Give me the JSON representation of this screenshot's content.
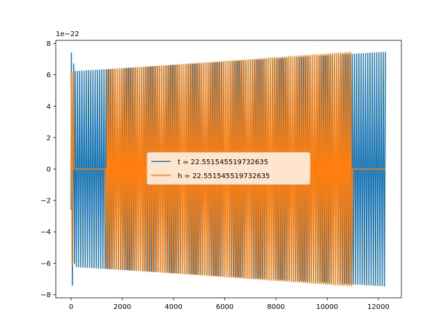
{
  "chart_data": {
    "type": "line",
    "title": "",
    "xlabel": "",
    "ylabel": "",
    "offset_text": "1e−22",
    "xlim": [
      -600,
      12900
    ],
    "ylim": [
      -8.2,
      8.2
    ],
    "xticks": [
      0,
      2000,
      4000,
      6000,
      8000,
      10000,
      12000
    ],
    "xtick_labels": [
      "0",
      "2000",
      "4000",
      "6000",
      "8000",
      "10000",
      "12000"
    ],
    "yticks": [
      -8,
      -6,
      -4,
      -2,
      0,
      2,
      4,
      6,
      8
    ],
    "ytick_labels": [
      "−8",
      "−6",
      "−4",
      "−2",
      "0",
      "2",
      "4",
      "6",
      "8"
    ],
    "grid": false,
    "legend_position": "center",
    "series": [
      {
        "name": "t = 22.551545519732635",
        "color": "#1f77b4",
        "description_points": {
          "x_start": 0,
          "x_end": 12280,
          "amplitude_start": 6.2,
          "amplitude_end": 7.45,
          "initial_spike": 7.4,
          "initial_dip": -7.4
        }
      },
      {
        "name": "h = 22.551545519732635",
        "color": "#ff7f0e",
        "description_points": {
          "x_start": 0,
          "x_end": 11000,
          "amplitude_start": 6.15,
          "amplitude_end": 7.45,
          "flat_segments": [
            [
              100,
              1350
            ],
            [
              11000,
              12280
            ]
          ]
        }
      }
    ]
  }
}
